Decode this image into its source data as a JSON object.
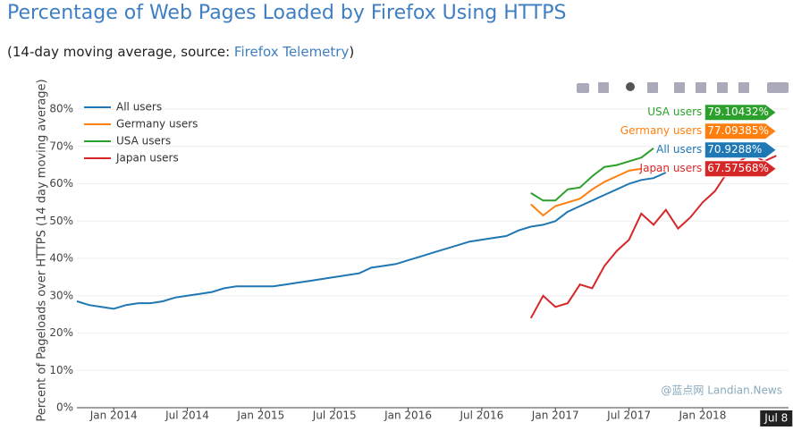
{
  "chart_data": {
    "type": "line",
    "title": "Percentage of Web Pages Loaded by Firefox Using HTTPS",
    "subtitle": {
      "text": "(14-day moving average, source: ",
      "link": "Firefox Telemetry",
      "end": ")"
    },
    "y_label": "Percent of Pageloads over HTTPS (14 day moving average)",
    "xlim": [
      "2013-10",
      "2018-08"
    ],
    "xticks": [
      {
        "value": "2014-01",
        "label": "Jan 2014"
      },
      {
        "value": "2014-07",
        "label": "Jul 2014"
      },
      {
        "value": "2015-01",
        "label": "Jan 2015"
      },
      {
        "value": "2015-07",
        "label": "Jul 2015"
      },
      {
        "value": "2016-01",
        "label": "Jan 2016"
      },
      {
        "value": "2016-07",
        "label": "Jul 2016"
      },
      {
        "value": "2017-01",
        "label": "Jan 2017"
      },
      {
        "value": "2017-07",
        "label": "Jul 2017"
      },
      {
        "value": "2018-01",
        "label": "Jan 2018"
      }
    ],
    "ylim": [
      0,
      80
    ],
    "yticks": [
      {
        "value": 0,
        "label": "0%"
      },
      {
        "value": 10,
        "label": "10%"
      },
      {
        "value": 20,
        "label": "20%"
      },
      {
        "value": 30,
        "label": "30%"
      },
      {
        "value": 40,
        "label": "40%"
      },
      {
        "value": 50,
        "label": "50%"
      },
      {
        "value": 60,
        "label": "60%"
      },
      {
        "value": 70,
        "label": "70%"
      },
      {
        "value": 80,
        "label": "80%"
      }
    ],
    "grid": true,
    "legend": "top-left",
    "series": [
      {
        "name": "All users",
        "color": "#1f77b4",
        "x": [
          "2013-10",
          "2013-11",
          "2013-12",
          "2014-01",
          "2014-02",
          "2014-03",
          "2014-04",
          "2014-05",
          "2014-06",
          "2014-07",
          "2014-08",
          "2014-09",
          "2014-10",
          "2014-11",
          "2014-12",
          "2015-01",
          "2015-02",
          "2015-03",
          "2015-04",
          "2015-05",
          "2015-06",
          "2015-07",
          "2015-08",
          "2015-09",
          "2015-10",
          "2015-11",
          "2015-12",
          "2016-01",
          "2016-02",
          "2016-03",
          "2016-04",
          "2016-05",
          "2016-06",
          "2016-07",
          "2016-08",
          "2016-09",
          "2016-10",
          "2016-11",
          "2016-12",
          "2017-01",
          "2017-02",
          "2017-03",
          "2017-04",
          "2017-05",
          "2017-06",
          "2017-07",
          "2017-08",
          "2017-09",
          "2017-10"
        ],
        "values": [
          28.5,
          27.5,
          27,
          26.5,
          27.5,
          28,
          28,
          28.5,
          29.5,
          30,
          30.5,
          31,
          32,
          32.5,
          32.5,
          32.5,
          32.5,
          33,
          33.5,
          34,
          34.5,
          35,
          35.5,
          36,
          37.5,
          38,
          38.5,
          39.5,
          40.5,
          41.5,
          42.5,
          43.5,
          44.5,
          45,
          45.5,
          46,
          47.5,
          48.5,
          49,
          50,
          52.5,
          54,
          55.5,
          57,
          58.5,
          60,
          61,
          61.5,
          63
        ]
      },
      {
        "name": "Germany users",
        "color": "#ff7f0e",
        "x": [
          "2016-11",
          "2016-12",
          "2017-01",
          "2017-02",
          "2017-03",
          "2017-04",
          "2017-05",
          "2017-06",
          "2017-07",
          "2017-08"
        ],
        "values": [
          54.5,
          51.5,
          54,
          55,
          56,
          58.5,
          60.5,
          62,
          63.5,
          64
        ]
      },
      {
        "name": "USA users",
        "color": "#2ca02c",
        "x": [
          "2016-11",
          "2016-12",
          "2017-01",
          "2017-02",
          "2017-03",
          "2017-04",
          "2017-05",
          "2017-06",
          "2017-07",
          "2017-08",
          "2017-09"
        ],
        "values": [
          57.5,
          55.5,
          55.5,
          58.5,
          59,
          62,
          64.5,
          65,
          66,
          67,
          69.5
        ]
      },
      {
        "name": "Japan users",
        "color": "#d62728",
        "x": [
          "2016-11",
          "2016-12",
          "2017-01",
          "2017-02",
          "2017-03",
          "2017-04",
          "2017-05",
          "2017-06",
          "2017-07",
          "2017-08",
          "2017-09",
          "2017-10",
          "2017-11",
          "2017-12",
          "2018-01",
          "2018-02",
          "2018-03",
          "2018-04",
          "2018-05",
          "2018-06",
          "2018-07"
        ],
        "values": [
          24,
          30,
          27,
          28,
          33,
          32,
          38,
          42,
          45,
          52,
          49,
          53,
          48,
          51,
          55,
          58,
          63,
          66,
          68,
          66,
          67.5
        ]
      }
    ],
    "hover": {
      "x": "2018-07",
      "x_label": "Jul 8",
      "items": [
        {
          "name": "USA users",
          "label": "79.10432%",
          "value": 79.10432,
          "color": "#2ca02c"
        },
        {
          "name": "Germany users",
          "label": "77.09385%",
          "value": 77.09385,
          "color": "#ff7f0e"
        },
        {
          "name": "All users",
          "label": "70.9288%",
          "value": 70.9288,
          "color": "#1f77b4"
        },
        {
          "name": "Japan users",
          "label": "67.57568%",
          "value": 67.57568,
          "color": "#d62728"
        }
      ]
    },
    "watermark": "@蓝点网 Landian.News"
  }
}
